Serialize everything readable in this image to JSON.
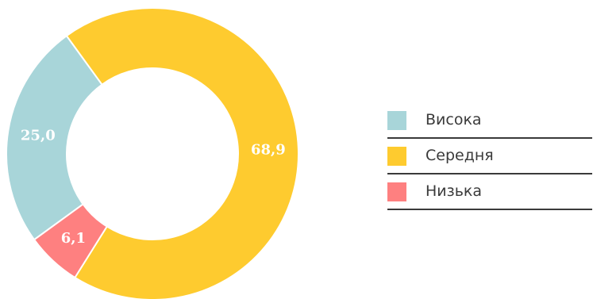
{
  "chart_data": {
    "type": "pie",
    "donut": true,
    "title": "",
    "categories": [
      "Висока",
      "Середня",
      "Низька"
    ],
    "values": [
      25.0,
      68.9,
      6.1
    ],
    "value_labels": [
      "25,0",
      "68,9",
      "6,1"
    ],
    "colors": [
      "#a8d5d9",
      "#fecb2f",
      "#fe8080"
    ],
    "legend_placement": "right"
  }
}
